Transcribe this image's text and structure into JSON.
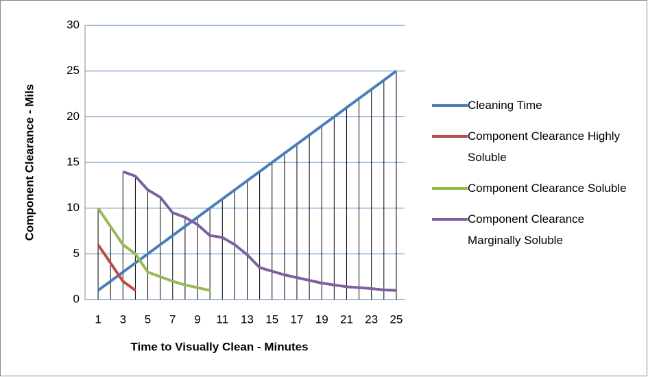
{
  "chart_data": {
    "type": "line",
    "x_label": "Time to Visually Clean - Minutes",
    "y_label": "Component Clearance - Mils",
    "categories": [
      1,
      null,
      3,
      null,
      5,
      null,
      7,
      null,
      9,
      null,
      11,
      null,
      13,
      null,
      15,
      null,
      17,
      null,
      19,
      null,
      21,
      null,
      23,
      null,
      25
    ],
    "series": [
      {
        "name": "Cleaning Time",
        "color": "#4a7ebb",
        "values": [
          1,
          2,
          3,
          4,
          5,
          6,
          7,
          8,
          9,
          10,
          11,
          12,
          13,
          14,
          15,
          16,
          17,
          18,
          19,
          20,
          21,
          22,
          23,
          24,
          25
        ]
      },
      {
        "name": "Component Clearance Highly Soluble",
        "color": "#be4b48",
        "values": [
          6,
          4,
          2,
          1,
          null,
          null,
          null,
          null,
          null,
          null,
          null,
          null,
          null,
          null,
          null,
          null,
          null,
          null,
          null,
          null,
          null,
          null,
          null,
          null,
          null
        ]
      },
      {
        "name": "Component Clearance Soluble",
        "color": "#98b954",
        "values": [
          10,
          8,
          6,
          5,
          3,
          2.5,
          2,
          1.6,
          1.3,
          1,
          null,
          null,
          null,
          null,
          null,
          null,
          null,
          null,
          null,
          null,
          null,
          null,
          null,
          null,
          null
        ]
      },
      {
        "name": "Component Clearance Marginally Soluble",
        "color": "#7d60a0",
        "values": [
          null,
          null,
          14,
          13.5,
          12,
          11.2,
          9.5,
          9,
          8.2,
          7,
          6.8,
          6,
          4.9,
          3.5,
          3.1,
          2.7,
          2.4,
          2.1,
          1.8,
          1.6,
          1.4,
          1.3,
          1.2,
          1.05,
          1
        ]
      }
    ],
    "ylim": [
      0,
      30
    ],
    "yticks": [
      0,
      5,
      10,
      15,
      20,
      25,
      30
    ],
    "grid": true,
    "drop_lines": true,
    "legend": "right"
  }
}
